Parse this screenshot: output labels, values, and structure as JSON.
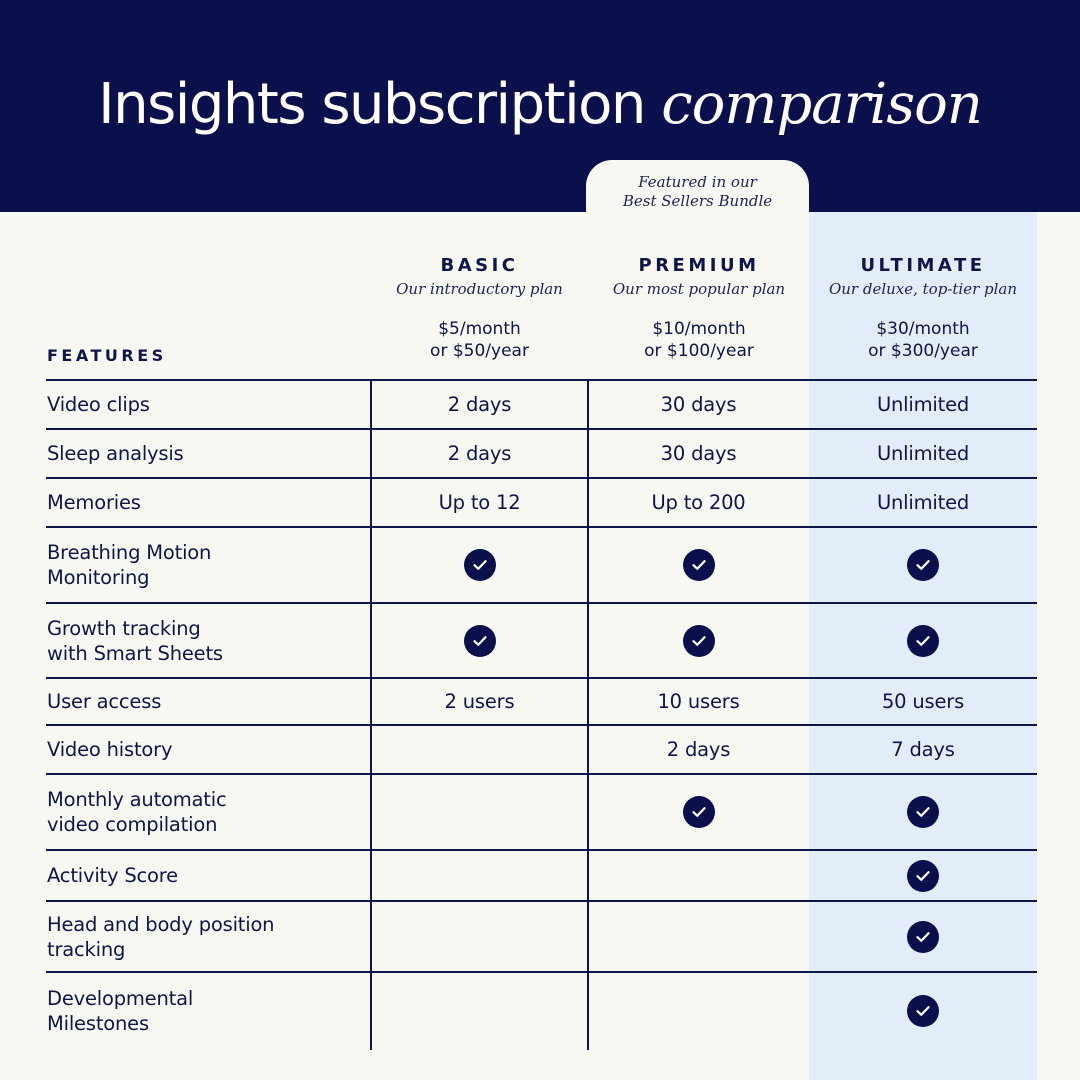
{
  "header": {
    "title_main": "Insights subscription",
    "title_italic": "comparison"
  },
  "featured_tab": {
    "line1": "Featured in our",
    "line2": "Best Sellers Bundle"
  },
  "features_heading": "FEATURES",
  "plans": [
    {
      "name": "BASIC",
      "subtitle": "Our introductory plan",
      "price_monthly": "$5/month",
      "price_yearly": "or $50/year"
    },
    {
      "name": "PREMIUM",
      "subtitle": "Our most popular plan",
      "price_monthly": "$10/month",
      "price_yearly": "or $100/year"
    },
    {
      "name": "ULTIMATE",
      "subtitle": "Our deluxe, top-tier plan",
      "price_monthly": "$30/month",
      "price_yearly": "or $300/year"
    }
  ],
  "colors": {
    "navy": "#0b0f4c",
    "background": "#f8f8f2",
    "ultimate_highlight": "#e3edfa"
  },
  "check_icon": "check-circle-icon",
  "rows": [
    {
      "feature": [
        "Video clips"
      ],
      "values": [
        "2 days",
        "30 days",
        "Unlimited"
      ]
    },
    {
      "feature": [
        "Sleep analysis"
      ],
      "values": [
        "2 days",
        "30 days",
        "Unlimited"
      ]
    },
    {
      "feature": [
        "Memories"
      ],
      "values": [
        "Up to 12",
        "Up to 200",
        "Unlimited"
      ]
    },
    {
      "feature": [
        "Breathing Motion",
        "Monitoring"
      ],
      "values": [
        "check",
        "check",
        "check"
      ]
    },
    {
      "feature": [
        "Growth tracking",
        "with Smart Sheets"
      ],
      "values": [
        "check",
        "check",
        "check"
      ]
    },
    {
      "feature": [
        "User access"
      ],
      "values": [
        "2 users",
        "10 users",
        "50 users"
      ]
    },
    {
      "feature": [
        "Video history"
      ],
      "values": [
        "",
        "2 days",
        "7 days"
      ]
    },
    {
      "feature": [
        "Monthly automatic",
        "video compilation"
      ],
      "values": [
        "",
        "check",
        "check"
      ]
    },
    {
      "feature": [
        "Activity Score"
      ],
      "values": [
        "",
        "",
        "check"
      ]
    },
    {
      "feature": [
        "Head and body position",
        "tracking"
      ],
      "values": [
        "",
        "",
        "check"
      ]
    },
    {
      "feature": [
        "Developmental",
        "Milestones"
      ],
      "values": [
        "",
        "",
        "check"
      ]
    }
  ]
}
